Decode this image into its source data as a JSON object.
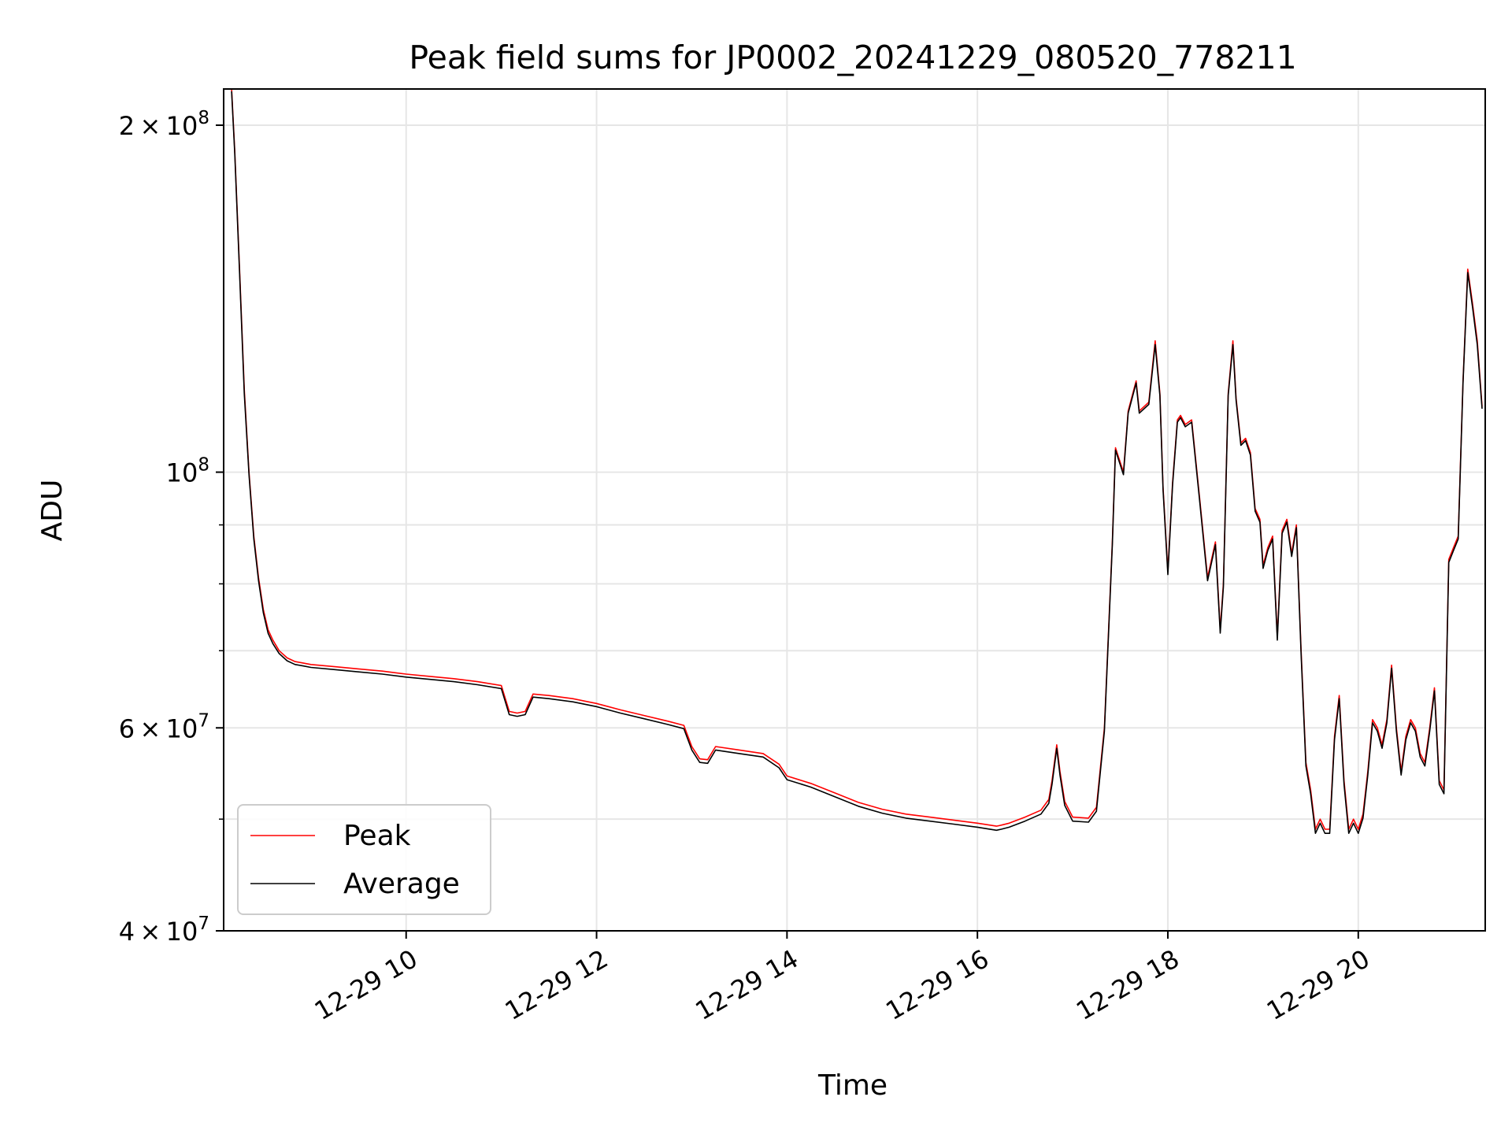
{
  "chart_data": {
    "type": "line",
    "title": "Peak field sums for JP0002_20241229_080520_778211",
    "xlabel": "Time",
    "ylabel": "ADU",
    "xscale": "time",
    "yscale": "log",
    "xlim": [
      "2024-12-29 08:05",
      "2024-12-29 21:20"
    ],
    "ylim": [
      40000000,
      215000000
    ],
    "grid": true,
    "legend_position": "lower-left",
    "x_tick_labels": [
      "12-29 10",
      "12-29 12",
      "12-29 14",
      "12-29 16",
      "12-29 18",
      "12-29 20"
    ],
    "x_ticks": [
      "2024-12-29 10:00",
      "2024-12-29 12:00",
      "2024-12-29 14:00",
      "2024-12-29 16:00",
      "2024-12-29 18:00",
      "2024-12-29 20:00"
    ],
    "y_major_ticks": [
      {
        "value": 40000000,
        "mantissa": "4",
        "exp": "7"
      },
      {
        "value": 60000000,
        "mantissa": "6",
        "exp": "7"
      },
      {
        "value": 100000000,
        "mantissa": "",
        "exp": "8"
      },
      {
        "value": 200000000,
        "mantissa": "2",
        "exp": "8"
      }
    ],
    "y_minor_ticks": [
      50000000,
      70000000,
      80000000,
      90000000
    ],
    "x": [
      "08:10",
      "08:12",
      "08:15",
      "08:18",
      "08:21",
      "08:24",
      "08:27",
      "08:30",
      "08:33",
      "08:36",
      "08:40",
      "08:45",
      "08:50",
      "08:55",
      "09:00",
      "09:15",
      "09:30",
      "09:45",
      "10:00",
      "10:15",
      "10:30",
      "10:45",
      "11:00",
      "11:05",
      "11:10",
      "11:15",
      "11:20",
      "11:30",
      "11:45",
      "12:00",
      "12:15",
      "12:30",
      "12:45",
      "12:55",
      "13:00",
      "13:05",
      "13:10",
      "13:15",
      "13:30",
      "13:45",
      "13:55",
      "14:00",
      "14:15",
      "14:30",
      "14:45",
      "15:00",
      "15:15",
      "15:30",
      "15:45",
      "16:00",
      "16:12",
      "16:15",
      "16:20",
      "16:30",
      "16:40",
      "16:45",
      "16:47",
      "16:50",
      "16:52",
      "16:55",
      "17:00",
      "17:10",
      "17:15",
      "17:20",
      "17:25",
      "17:27",
      "17:32",
      "17:35",
      "17:40",
      "17:42",
      "17:48",
      "17:52",
      "17:55",
      "17:57",
      "18:00",
      "18:03",
      "18:06",
      "18:08",
      "18:11",
      "18:15",
      "18:20",
      "18:25",
      "18:30",
      "18:33",
      "18:35",
      "18:38",
      "18:41",
      "18:43",
      "18:46",
      "18:49",
      "18:52",
      "18:55",
      "18:58",
      "19:00",
      "19:03",
      "19:06",
      "19:09",
      "19:12",
      "19:15",
      "19:18",
      "19:21",
      "19:24",
      "19:27",
      "19:30",
      "19:33",
      "19:36",
      "19:39",
      "19:42",
      "19:45",
      "19:48",
      "19:51",
      "19:54",
      "19:57",
      "20:00",
      "20:03",
      "20:06",
      "20:09",
      "20:12",
      "20:15",
      "20:18",
      "20:21",
      "20:24",
      "20:27",
      "20:30",
      "20:33",
      "20:36",
      "20:39",
      "20:42",
      "20:45",
      "20:48",
      "20:51",
      "20:54",
      "20:57",
      "21:00",
      "21:03",
      "21:06",
      "21:09",
      "21:12",
      "21:15",
      "21:18"
    ],
    "series": [
      {
        "name": "Peak",
        "color": "#ff0000",
        "values": [
          215000000,
          190000000,
          150000000,
          118000000,
          100000000,
          88000000,
          81000000,
          76000000,
          73000000,
          71500000,
          70000000,
          69000000,
          68500000,
          68300000,
          68100000,
          67800000,
          67500000,
          67200000,
          66800000,
          66500000,
          66200000,
          65800000,
          65300000,
          62000000,
          61800000,
          62000000,
          64200000,
          64000000,
          63600000,
          63000000,
          62200000,
          61500000,
          60800000,
          60300000,
          57800000,
          56400000,
          56300000,
          57800000,
          57400000,
          57000000,
          55800000,
          54500000,
          53700000,
          52700000,
          51700000,
          51000000,
          50500000,
          50200000,
          49900000,
          49600000,
          49300000,
          49400000,
          49600000,
          50200000,
          50900000,
          52000000,
          54000000,
          58000000,
          55000000,
          51800000,
          50200000,
          50100000,
          51200000,
          60000000,
          87000000,
          105000000,
          100000000,
          113000000,
          120000000,
          113000000,
          115000000,
          130000000,
          117000000,
          97000000,
          82000000,
          98000000,
          111000000,
          112000000,
          110000000,
          111000000,
          95000000,
          81000000,
          87000000,
          73000000,
          80000000,
          117000000,
          130000000,
          116000000,
          106000000,
          107000000,
          104000000,
          93000000,
          91000000,
          83000000,
          86000000,
          88000000,
          72000000,
          89000000,
          91000000,
          85000000,
          90000000,
          70000000,
          56000000,
          53000000,
          49000000,
          50000000,
          49000000,
          49000000,
          59000000,
          64000000,
          54000000,
          49000000,
          50000000,
          49000000,
          50500000,
          55000000,
          61000000,
          60000000,
          58000000,
          61000000,
          68000000,
          60000000,
          55000000,
          59000000,
          61000000,
          60000000,
          57000000,
          56000000,
          60000000,
          65000000,
          54000000,
          53000000,
          84000000,
          86000000,
          88000000,
          120000000,
          150000000,
          140000000,
          130000000,
          114000000
        ]
      },
      {
        "name": "Average",
        "color": "#000000",
        "values": [
          214000000,
          189000000,
          149000000,
          117000000,
          99500000,
          87500000,
          80500000,
          75500000,
          72500000,
          71000000,
          69600000,
          68600000,
          68100000,
          67900000,
          67700000,
          67400000,
          67100000,
          66800000,
          66400000,
          66100000,
          65800000,
          65400000,
          64900000,
          61600000,
          61400000,
          61600000,
          63800000,
          63600000,
          63200000,
          62600000,
          61800000,
          61100000,
          60400000,
          59900000,
          57400000,
          56000000,
          55900000,
          57400000,
          57000000,
          56600000,
          55400000,
          54100000,
          53300000,
          52300000,
          51300000,
          50600000,
          50100000,
          49800000,
          49500000,
          49200000,
          48900000,
          49000000,
          49200000,
          49800000,
          50500000,
          51600000,
          53600000,
          57600000,
          54600000,
          51400000,
          49800000,
          49700000,
          50800000,
          59600000,
          86500000,
          104500000,
          99500000,
          112500000,
          119500000,
          112500000,
          114500000,
          129000000,
          116500000,
          96500000,
          81500000,
          97500000,
          110500000,
          111500000,
          109500000,
          110500000,
          94500000,
          80500000,
          86500000,
          72500000,
          79500000,
          116500000,
          129000000,
          115500000,
          105500000,
          106500000,
          103500000,
          92500000,
          90500000,
          82500000,
          85500000,
          87500000,
          71500000,
          88500000,
          90500000,
          84500000,
          89500000,
          69500000,
          55600000,
          52600000,
          48600000,
          49600000,
          48600000,
          48600000,
          58600000,
          63600000,
          53600000,
          48600000,
          49600000,
          48600000,
          50100000,
          54600000,
          60600000,
          59600000,
          57600000,
          60600000,
          67600000,
          59600000,
          54600000,
          58600000,
          60600000,
          59600000,
          56600000,
          55600000,
          59600000,
          64600000,
          53600000,
          52600000,
          83500000,
          85500000,
          87500000,
          119500000,
          149000000,
          139000000,
          129000000,
          113500000
        ]
      }
    ]
  }
}
